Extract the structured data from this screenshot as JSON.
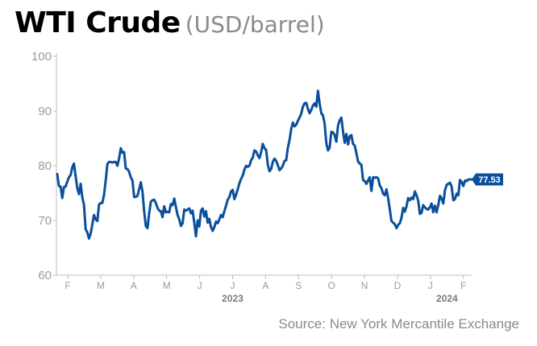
{
  "title": {
    "main": "WTI Crude",
    "unit": "(USD/barrel)"
  },
  "source": "Source: New York Mercantile Exchange",
  "colors": {
    "line": "#0b4f9c",
    "badge": "#0b4f9c",
    "axis_text": "#9a9a9a",
    "year_text": "#7a7a7a",
    "title": "#000000",
    "subtitle": "#8a8a8a"
  },
  "chart_data": {
    "type": "line",
    "title": "WTI Crude",
    "ylabel": "",
    "xlabel": "",
    "ylim": [
      60,
      100
    ],
    "yticks": [
      60,
      70,
      80,
      90,
      100
    ],
    "grid": false,
    "x_tick_labels": [
      "F",
      "M",
      "A",
      "M",
      "J",
      "J",
      "A",
      "S",
      "O",
      "N",
      "D",
      "J",
      "F"
    ],
    "x_year_labels": [
      {
        "text": "2023",
        "at_tick": 5
      },
      {
        "text": "2024",
        "at_tick": 11.5
      }
    ],
    "last_value_label": "77.53",
    "series": [
      {
        "values": [
          78.5,
          76.3,
          76.2,
          74.1,
          76.1,
          76.2,
          77.1,
          77.9,
          78.3,
          79.7,
          80.4,
          78.1,
          75.9,
          74.8,
          76.7,
          74.2,
          72.9,
          68.4,
          67.8,
          66.7,
          67.6,
          69.3,
          71.0,
          70.2,
          69.9,
          72.9,
          73.2,
          73.2,
          74.7,
          77.3,
          80.3,
          80.7,
          80.7,
          80.6,
          80.7,
          80.7,
          80.0,
          81.3,
          83.2,
          82.4,
          82.5,
          79.5,
          79.4,
          78.9,
          77.9,
          77.3,
          74.3,
          74.3,
          74.5,
          75.7,
          77.0,
          75.3,
          71.7,
          69.0,
          68.6,
          71.3,
          73.4,
          73.7,
          73.8,
          73.2,
          72.3,
          71.8,
          71.7,
          70.6,
          72.6,
          71.5,
          71.6,
          71.5,
          73.0,
          72.8,
          74.0,
          72.5,
          71.0,
          70.2,
          69.0,
          69.5,
          72.0,
          71.8,
          72.0,
          72.2,
          71.3,
          71.8,
          69.6,
          67.1,
          70.0,
          68.9,
          71.8,
          72.2,
          70.7,
          71.7,
          69.6,
          70.3,
          68.8,
          68.1,
          68.8,
          69.8,
          69.5,
          70.2,
          71.0,
          70.6,
          71.7,
          72.7,
          73.8,
          74.3,
          75.3,
          75.6,
          73.9,
          74.7,
          75.7,
          76.8,
          77.6,
          78.2,
          79.3,
          80.0,
          79.8,
          80.0,
          81.0,
          81.5,
          82.8,
          82.6,
          81.9,
          81.4,
          82.5,
          84.0,
          83.2,
          82.9,
          80.2,
          79.0,
          79.4,
          80.7,
          81.3,
          80.9,
          80.1,
          79.2,
          79.5,
          80.0,
          80.9,
          81.0,
          83.3,
          84.7,
          86.7,
          87.9,
          87.2,
          87.5,
          88.2,
          88.8,
          89.5,
          90.8,
          91.4,
          91.5,
          90.4,
          89.6,
          90.2,
          91.0,
          91.4,
          90.8,
          93.7,
          91.4,
          89.6,
          89.2,
          87.7,
          84.2,
          82.8,
          83.3,
          86.2,
          86.1,
          85.6,
          84.4,
          87.3,
          88.3,
          88.8,
          86.3,
          84.2,
          85.8,
          83.9,
          85.4,
          85.6,
          84.0,
          83.7,
          82.3,
          80.8,
          80.4,
          80.2,
          77.4,
          77.2,
          76.7,
          77.3,
          77.9,
          75.4,
          77.9,
          77.8,
          77.9,
          77.7,
          76.4,
          75.9,
          74.9,
          74.6,
          75.7,
          74.1,
          72.0,
          69.9,
          69.6,
          69.3,
          68.6,
          69.2,
          69.5,
          70.5,
          72.3,
          71.6,
          72.6,
          74.1,
          73.7,
          74.2,
          73.9,
          75.3,
          74.6,
          73.6,
          71.2,
          71.4,
          72.8,
          72.4,
          72.1,
          72.0,
          72.4,
          73.1,
          71.5,
          72.7,
          71.5,
          72.8,
          74.5,
          74.0,
          73.1,
          75.5,
          76.5,
          76.7,
          76.9,
          76.2,
          73.7,
          73.9,
          74.9,
          74.6,
          77.4,
          77.0,
          76.3,
          77.3,
          77.2,
          77.5,
          77.5,
          77.5
        ]
      }
    ]
  }
}
